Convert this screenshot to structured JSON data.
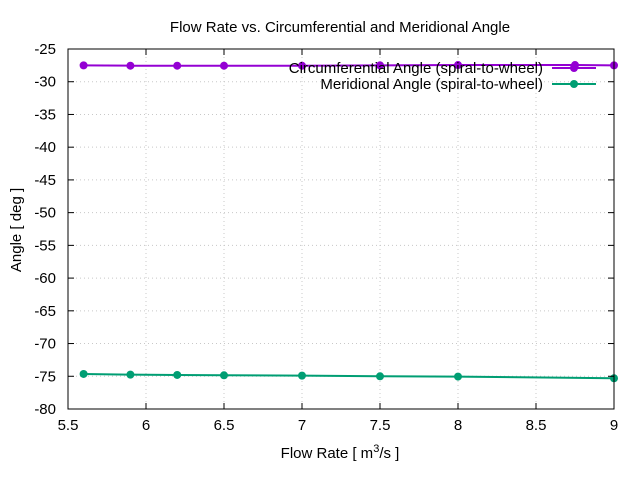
{
  "chart_data": {
    "type": "line",
    "title": "Flow Rate vs. Circumferential and Meridional Angle",
    "xlabel": {
      "prefix": "Flow Rate [ m",
      "superscript": "3",
      "suffix": "/s ]"
    },
    "ylabel": "Angle [ deg ]",
    "xlim": [
      5.5,
      9
    ],
    "ylim": [
      -80,
      -25
    ],
    "x_ticks": [
      5.5,
      6,
      6.5,
      7,
      7.5,
      8,
      8.5,
      9
    ],
    "x_tick_labels": [
      "5.5",
      "6",
      "6.5",
      "7",
      "7.5",
      "8",
      "8.5",
      "9"
    ],
    "y_ticks": [
      -25,
      -30,
      -35,
      -40,
      -45,
      -50,
      -55,
      -60,
      -65,
      -70,
      -75,
      -80
    ],
    "y_tick_labels": [
      "-25",
      "-30",
      "-35",
      "-40",
      "-45",
      "-50",
      "-55",
      "-60",
      "-65",
      "-70",
      "-75",
      "-80"
    ],
    "grid": true,
    "legend_position": "top-right",
    "series": [
      {
        "name": "Circumferential Angle (spiral-to-wheel)",
        "color": "#9400d3",
        "x": [
          5.6,
          5.9,
          6.2,
          6.5,
          7.0,
          7.5,
          8.0,
          8.75,
          9.0
        ],
        "y": [
          -27.5,
          -27.55,
          -27.55,
          -27.55,
          -27.55,
          -27.5,
          -27.45,
          -27.45,
          -27.5
        ]
      },
      {
        "name": "Meridional Angle (spiral-to-wheel)",
        "color": "#009e73",
        "x": [
          5.6,
          5.9,
          6.2,
          6.5,
          7.0,
          7.5,
          8.0,
          9.0
        ],
        "y": [
          -74.65,
          -74.75,
          -74.8,
          -74.85,
          -74.9,
          -75.0,
          -75.05,
          -75.3
        ]
      }
    ]
  }
}
